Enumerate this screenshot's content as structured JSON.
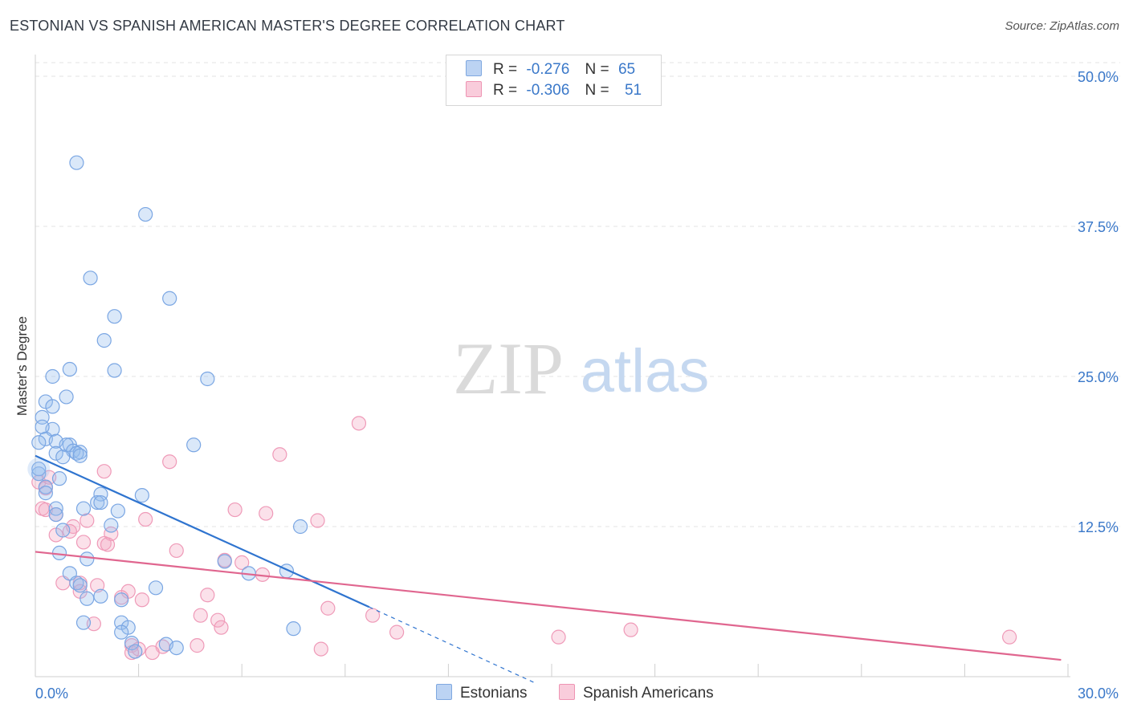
{
  "title": "ESTONIAN VS SPANISH AMERICAN MASTER'S DEGREE CORRELATION CHART",
  "source": "Source: ZipAtlas.com",
  "watermark_zip": "ZIP",
  "watermark_atlas": "atlas",
  "legend": {
    "estonians": {
      "r_label": "R =",
      "r_value": "-0.276",
      "n_label": "N =",
      "n_value": "65"
    },
    "spanish": {
      "r_label": "R =",
      "r_value": "-0.306",
      "n_label": "N =",
      "n_value": "51"
    }
  },
  "bottom_legend": {
    "estonians": "Estonians",
    "spanish": "Spanish Americans"
  },
  "chart_data": {
    "type": "scatter",
    "title": "ESTONIAN VS SPANISH AMERICAN MASTER'S DEGREE CORRELATION CHART",
    "ylabel": "Master's Degree",
    "xlabel": "",
    "xlim": [
      0,
      30
    ],
    "ylim": [
      0,
      50
    ],
    "x_tick_labels": [
      "0.0%",
      "30.0%"
    ],
    "y_ticks": [
      12.5,
      25.0,
      37.5,
      50.0
    ],
    "y_tick_labels": [
      "12.5%",
      "25.0%",
      "37.5%",
      "50.0%"
    ],
    "grid": true,
    "colors": {
      "estonians": "#6fa0e0",
      "spanish": "#f08fb0",
      "est_line": "#2f74cf",
      "spa_line": "#e0668f"
    },
    "series": [
      {
        "name": "Estonians",
        "r": -0.276,
        "n": 65,
        "trend": {
          "x0": 0,
          "y0": 18.4,
          "x1": 9.7,
          "y1": 5.8,
          "dash_to_x": 14.5,
          "dash_to_y": -0.5
        },
        "points": [
          [
            1.2,
            42.8
          ],
          [
            3.2,
            38.5
          ],
          [
            1.6,
            33.2
          ],
          [
            3.9,
            31.5
          ],
          [
            2.3,
            30.0
          ],
          [
            2.0,
            28.0
          ],
          [
            1.0,
            25.6
          ],
          [
            2.3,
            25.5
          ],
          [
            0.5,
            25.0
          ],
          [
            5.0,
            24.8
          ],
          [
            0.9,
            23.3
          ],
          [
            0.3,
            22.9
          ],
          [
            0.5,
            22.5
          ],
          [
            0.2,
            21.6
          ],
          [
            0.5,
            20.6
          ],
          [
            0.2,
            20.8
          ],
          [
            0.3,
            19.8
          ],
          [
            0.6,
            19.6
          ],
          [
            0.1,
            19.5
          ],
          [
            1.0,
            19.3
          ],
          [
            0.9,
            19.3
          ],
          [
            4.6,
            19.3
          ],
          [
            1.1,
            18.8
          ],
          [
            1.3,
            18.7
          ],
          [
            1.2,
            18.6
          ],
          [
            0.6,
            18.6
          ],
          [
            0.8,
            18.3
          ],
          [
            1.3,
            18.4
          ],
          [
            0.1,
            16.9
          ],
          [
            0.7,
            16.5
          ],
          [
            0.3,
            15.8
          ],
          [
            0.3,
            15.3
          ],
          [
            1.9,
            15.2
          ],
          [
            3.1,
            15.1
          ],
          [
            1.8,
            14.5
          ],
          [
            1.9,
            14.5
          ],
          [
            0.6,
            14.0
          ],
          [
            1.4,
            14.0
          ],
          [
            2.4,
            13.8
          ],
          [
            0.6,
            13.5
          ],
          [
            2.2,
            12.6
          ],
          [
            7.7,
            12.5
          ],
          [
            0.8,
            12.2
          ],
          [
            0.7,
            10.3
          ],
          [
            1.5,
            9.8
          ],
          [
            5.5,
            9.6
          ],
          [
            6.2,
            8.6
          ],
          [
            7.3,
            8.8
          ],
          [
            1.0,
            8.6
          ],
          [
            1.2,
            7.8
          ],
          [
            1.3,
            7.6
          ],
          [
            3.5,
            7.4
          ],
          [
            1.5,
            6.5
          ],
          [
            1.9,
            6.7
          ],
          [
            2.5,
            6.4
          ],
          [
            1.4,
            4.5
          ],
          [
            2.5,
            4.5
          ],
          [
            2.7,
            4.1
          ],
          [
            7.5,
            4.0
          ],
          [
            2.5,
            3.7
          ],
          [
            2.8,
            2.8
          ],
          [
            3.8,
            2.7
          ],
          [
            4.1,
            2.4
          ],
          [
            2.9,
            2.1
          ],
          [
            0.1,
            17.3
          ]
        ]
      },
      {
        "name": "Spanish Americans",
        "r": -0.306,
        "n": 51,
        "trend": {
          "x0": 0,
          "y0": 10.4,
          "x1": 29.8,
          "y1": 1.4
        },
        "points": [
          [
            9.4,
            21.1
          ],
          [
            7.1,
            18.5
          ],
          [
            3.9,
            17.9
          ],
          [
            2.0,
            17.1
          ],
          [
            0.1,
            16.2
          ],
          [
            0.3,
            15.7
          ],
          [
            0.4,
            16.6
          ],
          [
            0.2,
            14.0
          ],
          [
            0.3,
            13.9
          ],
          [
            0.6,
            13.5
          ],
          [
            5.8,
            13.9
          ],
          [
            6.7,
            13.6
          ],
          [
            1.5,
            13.0
          ],
          [
            3.2,
            13.1
          ],
          [
            8.2,
            13.0
          ],
          [
            1.1,
            12.5
          ],
          [
            0.6,
            11.8
          ],
          [
            1.0,
            12.1
          ],
          [
            2.2,
            11.9
          ],
          [
            1.4,
            11.2
          ],
          [
            2.0,
            11.1
          ],
          [
            2.1,
            11.0
          ],
          [
            4.1,
            10.5
          ],
          [
            5.5,
            9.7
          ],
          [
            6.0,
            9.5
          ],
          [
            6.6,
            8.5
          ],
          [
            0.8,
            7.8
          ],
          [
            1.3,
            7.8
          ],
          [
            1.8,
            7.6
          ],
          [
            1.3,
            7.1
          ],
          [
            2.7,
            7.1
          ],
          [
            2.5,
            6.6
          ],
          [
            3.1,
            6.4
          ],
          [
            5.0,
            6.8
          ],
          [
            8.5,
            5.7
          ],
          [
            4.8,
            5.1
          ],
          [
            5.3,
            4.7
          ],
          [
            9.8,
            5.1
          ],
          [
            5.4,
            4.1
          ],
          [
            1.7,
            4.4
          ],
          [
            10.5,
            3.7
          ],
          [
            15.2,
            3.3
          ],
          [
            17.3,
            3.9
          ],
          [
            28.3,
            3.3
          ],
          [
            2.8,
            2.6
          ],
          [
            3.7,
            2.5
          ],
          [
            4.7,
            2.6
          ],
          [
            3.0,
            2.3
          ],
          [
            8.3,
            2.3
          ],
          [
            3.4,
            2.0
          ],
          [
            2.8,
            2.0
          ]
        ]
      }
    ]
  }
}
